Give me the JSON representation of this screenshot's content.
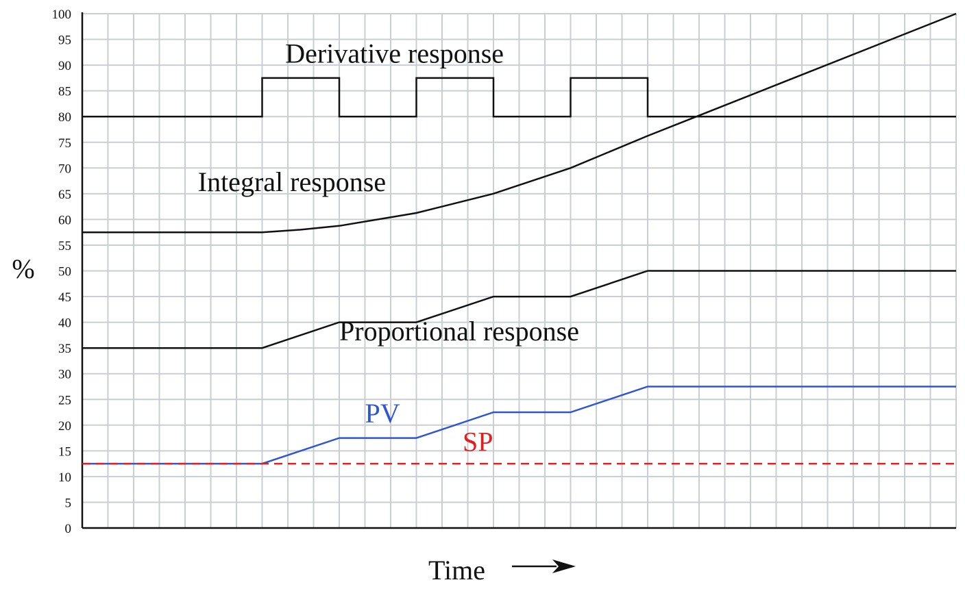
{
  "chart_data": {
    "type": "line",
    "title": "",
    "xlabel": "Time",
    "ylabel": "%",
    "ylim": [
      0,
      100
    ],
    "xlim": [
      0,
      34
    ],
    "grid": true,
    "y_ticks": [
      0,
      5,
      10,
      15,
      20,
      25,
      30,
      35,
      40,
      45,
      50,
      55,
      60,
      65,
      70,
      75,
      80,
      85,
      90,
      95,
      100
    ],
    "series": [
      {
        "name": "Derivative response",
        "color": "#111111",
        "dashed": false,
        "x": [
          0,
          7,
          7,
          10,
          10,
          13,
          13,
          16,
          16,
          19,
          19,
          22,
          22,
          34
        ],
        "y": [
          80,
          80,
          87.5,
          87.5,
          80,
          80,
          87.5,
          87.5,
          80,
          80,
          87.5,
          87.5,
          80,
          80
        ]
      },
      {
        "name": "Integral response",
        "color": "#111111",
        "dashed": false,
        "x": [
          0,
          7,
          8.5,
          10,
          13,
          16,
          19,
          22,
          34
        ],
        "y": [
          57.5,
          57.5,
          58,
          58.75,
          61.25,
          65,
          70,
          76.25,
          100
        ]
      },
      {
        "name": "Proportional response",
        "color": "#111111",
        "dashed": false,
        "x": [
          0,
          7,
          10,
          13,
          16,
          19,
          22,
          34
        ],
        "y": [
          35,
          35,
          40,
          40,
          45,
          45,
          50,
          50
        ]
      },
      {
        "name": "PV",
        "color": "#2f55d4",
        "dashed": false,
        "x": [
          0,
          7,
          10,
          13,
          16,
          19,
          22,
          34
        ],
        "y": [
          12.5,
          12.5,
          17.5,
          17.5,
          22.5,
          22.5,
          27.5,
          27.5
        ]
      },
      {
        "name": "SP",
        "color": "#e02020",
        "dashed": true,
        "x": [
          0,
          34
        ],
        "y": [
          12.5,
          12.5
        ]
      }
    ],
    "annotations": [
      {
        "text": "Derivative response",
        "x": 7.9,
        "y": 90.5,
        "color": "#111111"
      },
      {
        "text": "Integral response",
        "x": 4.5,
        "y": 65.5,
        "color": "#111111"
      },
      {
        "text": "Proportional response",
        "x": 10,
        "y": 36.5,
        "color": "#111111"
      },
      {
        "text": "PV",
        "x": 11,
        "y": 20.5,
        "color": "#2f55d4"
      },
      {
        "text": "SP",
        "x": 14.8,
        "y": 15,
        "color": "#e02020"
      }
    ]
  }
}
